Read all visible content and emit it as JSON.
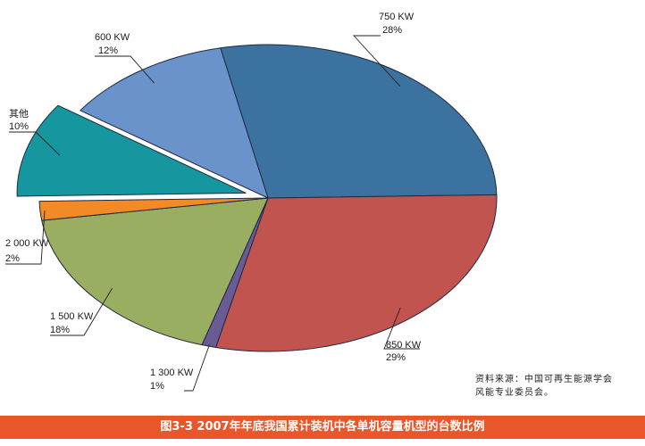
{
  "chart_data": {
    "type": "pie",
    "slices": [
      {
        "label": "750 KW",
        "pct_label": "28%",
        "value": 28,
        "color": "#3c72a0"
      },
      {
        "label": "850 KW",
        "pct_label": "29%",
        "value": 29,
        "color": "#c2544f"
      },
      {
        "label": "1 300 KW",
        "pct_label": "1%",
        "value": 1,
        "color": "#6a5b95"
      },
      {
        "label": "1 500 KW",
        "pct_label": "18%",
        "value": 18,
        "color": "#9aae62"
      },
      {
        "label": "2 000 KW",
        "pct_label": "2%",
        "value": 2,
        "color": "#f28a28"
      },
      {
        "label": "其他",
        "pct_label": "10%",
        "value": 10,
        "color": "#16969e",
        "exploded": true
      },
      {
        "label": "600 KW",
        "pct_label": "12%",
        "value": 12,
        "color": "#6a93cc"
      }
    ]
  },
  "source": {
    "line1": "资料来源：中国可再生能源学会",
    "line2": "风能专业委员会。"
  },
  "caption": "图3-3  2007年年底我国累计装机中各单机容量机型的台数比例"
}
